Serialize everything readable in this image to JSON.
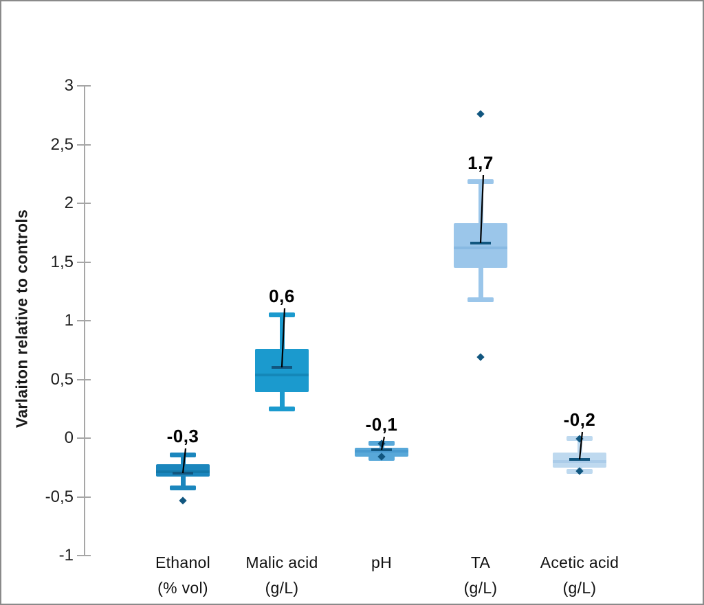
{
  "chart_data": {
    "type": "boxplot",
    "title": "",
    "ylabel": "Varlaiton relative to controls",
    "xlabel": "",
    "ylim": [
      -1,
      3
    ],
    "grid": false,
    "legend": false,
    "decimal_separator": ",",
    "axis_color": "#a6a6a6",
    "marker_color": "#11567f",
    "yticks": [
      {
        "value": 3,
        "label": "3"
      },
      {
        "value": 2.5,
        "label": "2,5"
      },
      {
        "value": 2,
        "label": "2"
      },
      {
        "value": 1.5,
        "label": "1,5"
      },
      {
        "value": 1,
        "label": "1"
      },
      {
        "value": 0.5,
        "label": "0,5"
      },
      {
        "value": 0,
        "label": "0"
      },
      {
        "value": -0.5,
        "label": "-0,5"
      },
      {
        "value": -1,
        "label": "-1"
      }
    ],
    "categories": [
      "Ethanol (% vol)",
      "Malic acid (g/L)",
      "pH",
      "TA (g/L)",
      "Acetic acid (g/L)"
    ],
    "series": [
      {
        "name": "Ethanol (% vol)",
        "label_line1": "Ethanol",
        "label_line2": "(% vol)",
        "color": "#1b86bd",
        "median_color": "#1478a8",
        "whisker_high": -0.14,
        "q3": -0.22,
        "median": -0.285,
        "mean": -0.3,
        "q1": -0.33,
        "whisker_low": -0.42,
        "outliers": [
          -0.53
        ],
        "mean_label": "-0,3"
      },
      {
        "name": "Malic acid (g/L)",
        "label_line1": "Malic acid",
        "label_line2": "(g/L)",
        "color": "#1b9ace",
        "median_color": "#1487b8",
        "whisker_high": 1.05,
        "q3": 0.76,
        "median": 0.54,
        "mean": 0.6,
        "q1": 0.39,
        "whisker_low": 0.25,
        "outliers": [],
        "mean_label": "0,6"
      },
      {
        "name": "pH",
        "label_line1": "pH",
        "label_line2": "",
        "color": "#58a8d9",
        "median_color": "#4a9bd0",
        "whisker_high": -0.04,
        "q3": -0.08,
        "median": -0.11,
        "mean": -0.1,
        "q1": -0.16,
        "whisker_low": -0.17,
        "outliers": [
          -0.045,
          -0.155
        ],
        "mean_label": "-0,1"
      },
      {
        "name": "TA (g/L)",
        "label_line1": "TA",
        "label_line2": "(g/L)",
        "color": "#9bc6ea",
        "median_color": "#88b9e2",
        "whisker_high": 2.19,
        "q3": 1.83,
        "median": 1.62,
        "mean": 1.66,
        "q1": 1.45,
        "whisker_low": 1.18,
        "outliers": [
          2.76,
          0.69
        ],
        "mean_label": "1,7"
      },
      {
        "name": "Acetic acid (g/L)",
        "label_line1": "Acetic acid",
        "label_line2": "(g/L)",
        "color": "#bed9ef",
        "median_color": "#abcce9",
        "whisker_high": 0.0,
        "q3": -0.12,
        "median": -0.2,
        "mean": -0.18,
        "q1": -0.25,
        "whisker_low": -0.28,
        "outliers": [
          -0.005,
          -0.28
        ],
        "mean_label": "-0,2"
      }
    ]
  }
}
